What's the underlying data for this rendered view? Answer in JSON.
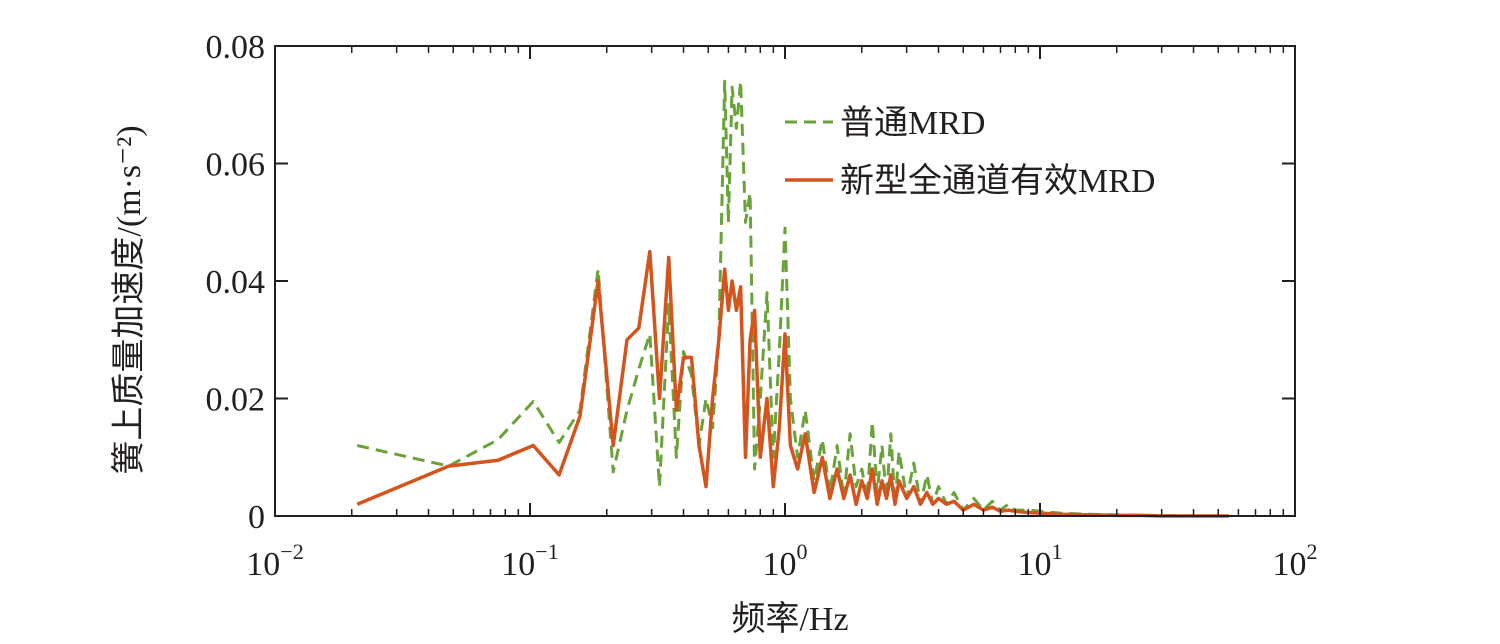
{
  "chart_data": {
    "type": "line",
    "title": "",
    "xlabel": "频率/Hz",
    "ylabel": "簧上质量加速度/(m·s⁻²)",
    "x_scale": "log",
    "xlim": [
      0.01,
      100
    ],
    "ylim": [
      0,
      0.08
    ],
    "x_ticks": [
      {
        "value": 0.01,
        "base": "10",
        "exp": "−2"
      },
      {
        "value": 0.1,
        "base": "10",
        "exp": "−1"
      },
      {
        "value": 1,
        "base": "10",
        "exp": "0"
      },
      {
        "value": 10,
        "base": "10",
        "exp": "1"
      },
      {
        "value": 100,
        "base": "10",
        "exp": "2"
      }
    ],
    "y_ticks": [
      {
        "value": 0,
        "label": "0"
      },
      {
        "value": 0.02,
        "label": "0.02"
      },
      {
        "value": 0.04,
        "label": "0.04"
      },
      {
        "value": 0.06,
        "label": "0.06"
      },
      {
        "value": 0.08,
        "label": "0.08"
      }
    ],
    "grid": false,
    "legend": "top-right",
    "series": [
      {
        "name": "普通MRD",
        "color": "#6aa33a",
        "dash": "dashed",
        "x": [
          0.021,
          0.048,
          0.075,
          0.103,
          0.13,
          0.157,
          0.185,
          0.212,
          0.24,
          0.267,
          0.295,
          0.322,
          0.35,
          0.375,
          0.4,
          0.43,
          0.46,
          0.49,
          0.52,
          0.55,
          0.58,
          0.6,
          0.62,
          0.645,
          0.67,
          0.7,
          0.73,
          0.76,
          0.8,
          0.85,
          0.9,
          0.95,
          1.0,
          1.05,
          1.12,
          1.2,
          1.3,
          1.4,
          1.5,
          1.6,
          1.7,
          1.8,
          1.9,
          2.0,
          2.1,
          2.2,
          2.3,
          2.4,
          2.5,
          2.6,
          2.7,
          2.8,
          3.0,
          3.2,
          3.4,
          3.6,
          3.8,
          4.0,
          4.3,
          4.6,
          5.0,
          5.5,
          6.0,
          6.5,
          7.0,
          7.5,
          8.0,
          9.0,
          10.0,
          12.0,
          15.0,
          20.0,
          25.0,
          30.0,
          40.0,
          55.0
        ],
        "y": [
          0.012,
          0.0085,
          0.013,
          0.0195,
          0.0125,
          0.018,
          0.042,
          0.0075,
          0.018,
          0.025,
          0.031,
          0.005,
          0.036,
          0.01,
          0.028,
          0.024,
          0.012,
          0.02,
          0.015,
          0.03,
          0.074,
          0.05,
          0.073,
          0.066,
          0.074,
          0.05,
          0.055,
          0.008,
          0.02,
          0.038,
          0.01,
          0.028,
          0.049,
          0.02,
          0.01,
          0.018,
          0.006,
          0.013,
          0.004,
          0.012,
          0.003,
          0.014,
          0.005,
          0.008,
          0.003,
          0.016,
          0.004,
          0.012,
          0.003,
          0.014,
          0.002,
          0.011,
          0.003,
          0.009,
          0.002,
          0.007,
          0.002,
          0.005,
          0.002,
          0.004,
          0.001,
          0.003,
          0.001,
          0.0025,
          0.001,
          0.002,
          0.001,
          0.001,
          0.0008,
          0.0005,
          0.0003,
          0.0002,
          0.0001,
          0.0001,
          0.0,
          0.0
        ]
      },
      {
        "name": "新型全通道有效MRD",
        "color": "#d4541e",
        "dash": "solid",
        "x": [
          0.021,
          0.048,
          0.075,
          0.103,
          0.13,
          0.157,
          0.185,
          0.212,
          0.24,
          0.267,
          0.295,
          0.322,
          0.35,
          0.375,
          0.4,
          0.43,
          0.46,
          0.49,
          0.52,
          0.55,
          0.58,
          0.6,
          0.62,
          0.645,
          0.67,
          0.7,
          0.73,
          0.76,
          0.8,
          0.85,
          0.9,
          0.95,
          1.0,
          1.05,
          1.12,
          1.2,
          1.3,
          1.4,
          1.5,
          1.6,
          1.7,
          1.8,
          1.9,
          2.0,
          2.1,
          2.2,
          2.3,
          2.4,
          2.5,
          2.6,
          2.7,
          2.8,
          3.0,
          3.2,
          3.4,
          3.6,
          3.8,
          4.0,
          4.3,
          4.6,
          5.0,
          5.5,
          6.0,
          6.5,
          7.0,
          7.5,
          8.0,
          9.0,
          10.0,
          12.0,
          15.0,
          20.0,
          25.0,
          30.0,
          40.0,
          55.0
        ],
        "y": [
          0.002,
          0.0085,
          0.0095,
          0.012,
          0.007,
          0.017,
          0.04,
          0.012,
          0.03,
          0.032,
          0.045,
          0.02,
          0.044,
          0.018,
          0.027,
          0.027,
          0.012,
          0.005,
          0.02,
          0.03,
          0.042,
          0.035,
          0.04,
          0.035,
          0.039,
          0.01,
          0.03,
          0.035,
          0.01,
          0.02,
          0.005,
          0.015,
          0.031,
          0.012,
          0.008,
          0.014,
          0.004,
          0.01,
          0.003,
          0.008,
          0.003,
          0.007,
          0.002,
          0.006,
          0.003,
          0.008,
          0.002,
          0.006,
          0.003,
          0.007,
          0.002,
          0.006,
          0.003,
          0.005,
          0.002,
          0.004,
          0.002,
          0.003,
          0.002,
          0.0025,
          0.001,
          0.002,
          0.001,
          0.0015,
          0.0008,
          0.001,
          0.0008,
          0.0006,
          0.0005,
          0.0003,
          0.0002,
          0.0001,
          0.0001,
          0.0,
          0.0,
          0.0
        ]
      }
    ]
  }
}
